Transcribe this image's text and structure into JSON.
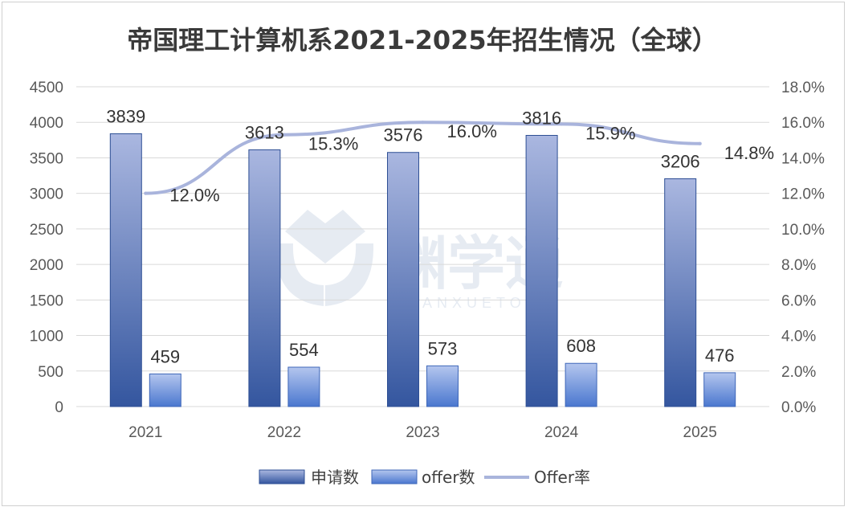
{
  "chart_data": {
    "type": "bar",
    "title": "帝国理工计算机系2021-2025年招生情况（全球）",
    "categories": [
      "2021",
      "2022",
      "2023",
      "2024",
      "2025"
    ],
    "series": [
      {
        "name": "申请数",
        "type": "bar",
        "axis": "left",
        "values": [
          3839,
          3613,
          3576,
          3816,
          3206
        ],
        "color": "#3a5da6"
      },
      {
        "name": "offer数",
        "type": "bar",
        "axis": "left",
        "values": [
          459,
          554,
          573,
          608,
          476
        ],
        "color": "#5b84d6"
      },
      {
        "name": "Offer率",
        "type": "line",
        "axis": "right",
        "values": [
          12.0,
          15.3,
          16.0,
          15.9,
          14.8
        ],
        "labels": [
          "12.0%",
          "15.3%",
          "16.0%",
          "15.9%",
          "14.8%"
        ],
        "color": "#a9b4dc"
      }
    ],
    "y_left": {
      "min": 0,
      "max": 4500,
      "ticks": [
        "0",
        "500",
        "1000",
        "1500",
        "2000",
        "2500",
        "3000",
        "3500",
        "4000",
        "4500"
      ]
    },
    "y_right": {
      "min": 0,
      "max": 18,
      "ticks": [
        "0.0%",
        "2.0%",
        "4.0%",
        "6.0%",
        "8.0%",
        "10.0%",
        "12.0%",
        "14.0%",
        "16.0%",
        "18.0%"
      ]
    },
    "grid": true,
    "legend_position": "bottom"
  },
  "watermark": {
    "text": "渊学通",
    "subtext": "YUANXUETONG"
  }
}
